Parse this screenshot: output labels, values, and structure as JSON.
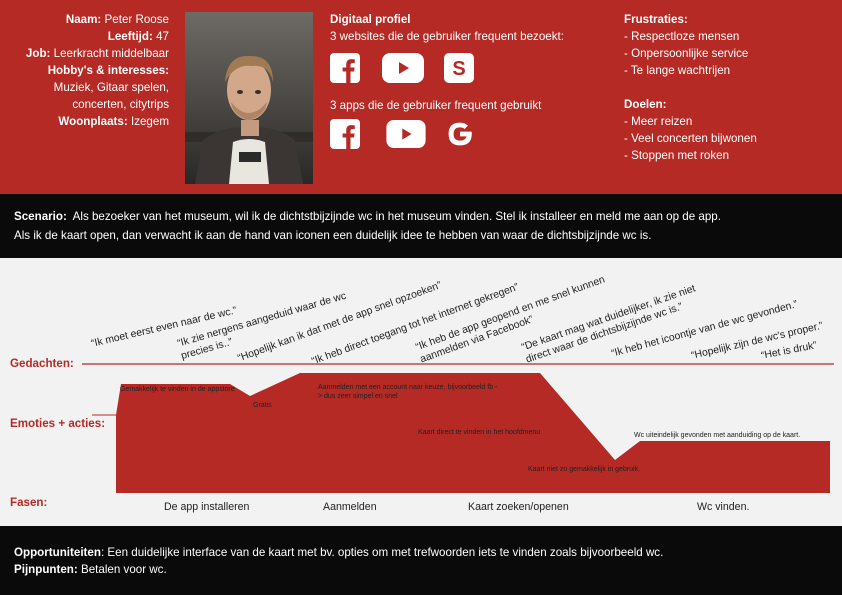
{
  "persona": {
    "name_label": "Naam:",
    "name": "Peter Roose",
    "age_label": "Leeftijd:",
    "age": "47",
    "job_label": "Job:",
    "job": "Leerkracht middelbaar",
    "hobbies_label": "Hobby's & interesses:",
    "hobbies_line1": "Muziek, Gitaar spelen,",
    "hobbies_line2": "concerten, citytrips",
    "residence_label": "Woonplaats:",
    "residence": "Izegem"
  },
  "digital": {
    "title": "Digitaal profiel",
    "websites_text": "3 websites die de gebruiker frequent bezoekt:",
    "websites": [
      "facebook-icon",
      "youtube-icon",
      "s-icon"
    ],
    "apps_text": "3 apps die de gebruiker frequent gebruikt",
    "apps": [
      "facebook-icon",
      "youtube-icon",
      "google-icon"
    ]
  },
  "frustrations": {
    "title": "Frustraties:",
    "items": [
      "Respectloze mensen",
      "Onpersoonlijke service",
      "Te lange wachtrijen"
    ]
  },
  "goals": {
    "title": "Doelen:",
    "items": [
      "Meer reizen",
      "Veel concerten bijwonen",
      "Stoppen met roken"
    ]
  },
  "scenario": {
    "label": "Scenario:",
    "line1": "Als bezoeker van het museum, wil ik de dichtstbijzijnde wc in het museum vinden. Stel ik installeer en meld me aan op de app.",
    "line2": "Als ik de kaart open, dan verwacht ik aan de hand van iconen een duidelijk idee te hebben van waar de dichtsbijzijnde wc is."
  },
  "journey": {
    "row_thoughts": "Gedachten:",
    "row_emotions": "Emoties + acties:",
    "row_phases": "Fasen:",
    "thoughts": [
      {
        "l1": "“Ik moet eerst even naar de wc.”",
        "l2": ""
      },
      {
        "l1": "“Ik zie nergens aangeduid waar de wc",
        "l2": "precies is..”"
      },
      {
        "l1": "“Hopelijk kan ik dat met de app snel opzoeken”",
        "l2": ""
      },
      {
        "l1": "“Ik heb direct toegang tot het internet gekregen”",
        "l2": ""
      },
      {
        "l1": "“Ik heb de app geopend en me snel kunnen",
        "l2": "aanmelden via Facebook”"
      },
      {
        "l1": "“De kaart mag wat duidelijker, ik zie niet",
        "l2": "direct waar de dichtsbijzijnde wc is.”"
      },
      {
        "l1": "“Ik heb het icoontje van de wc gevonden.”",
        "l2": ""
      },
      {
        "l1": "“Hopelijk zijn de wc's proper.”",
        "l2": ""
      },
      {
        "l1": "“Het is druk”",
        "l2": ""
      }
    ],
    "annotations": {
      "a1": "Gemakkelijk te vinden in de appstore",
      "a2": "Gratis",
      "a3_l1": "Aanmelden met een account naar keuze, bijvoorbeeld fb -",
      "a3_l2": "> dus zeer simpel en snel",
      "a4": "Kaart direct te vinden in het hoofdmenu",
      "a5": "Kaart  niet zo gemakkelijk in gebruik.",
      "a6": "Wc uiteindelijk gevonden met aanduiding op de kaart."
    },
    "phases": [
      "De app installeren",
      "Aanmelden",
      "Kaart zoeken/openen",
      "Wc vinden."
    ]
  },
  "bottom": {
    "opp_label": "Opportuniteiten",
    "opp_text": ": Een duidelijke interface van de kaart met bv. opties om met trefwoorden iets te vinden zoals bijvoorbeeld wc.",
    "pain_label": "Pijnpunten:",
    "pain_text": " Betalen voor wc."
  },
  "colors": {
    "accent": "#b52a25",
    "dark": "#0a0a0a",
    "map_bg": "#f2f2f2"
  }
}
